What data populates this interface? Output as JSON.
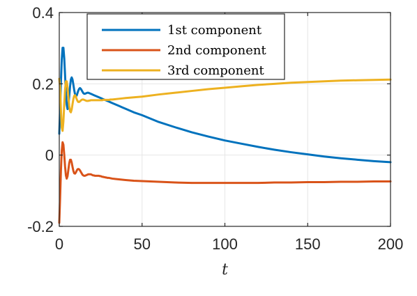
{
  "chart_data": {
    "type": "line",
    "title": "",
    "xlabel": "t",
    "ylabel": "",
    "xlim": [
      0,
      200
    ],
    "ylim": [
      -0.2,
      0.4
    ],
    "x_ticks": [
      0,
      50,
      100,
      150,
      200
    ],
    "x_tick_labels": [
      "0",
      "50",
      "100",
      "150",
      "200"
    ],
    "y_ticks": [
      -0.2,
      0,
      0.2,
      0.4
    ],
    "y_tick_labels": [
      "-0.2",
      "0",
      "0.2",
      "0.4"
    ],
    "grid": true,
    "legend_position": "top-right",
    "series": [
      {
        "name": "1st component",
        "color": "#0072BD",
        "x": [
          0,
          0.5,
          1.0,
          1.5,
          2.0,
          2.5,
          3.0,
          3.5,
          4.0,
          4.5,
          5.0,
          5.5,
          6.0,
          6.5,
          7.0,
          7.5,
          8.0,
          8.5,
          9.0,
          9.5,
          10.0,
          10.5,
          11.0,
          11.5,
          12.0,
          12.5,
          13.0,
          13.5,
          14.0,
          14.5,
          15.0,
          15.5,
          16.0,
          16.5,
          17.0,
          17.5,
          18.0,
          18.5,
          19.0,
          19.5,
          20.0,
          20.5,
          21.0,
          21.5,
          22.0,
          22.5,
          23.0,
          23.5,
          24.0,
          24.5,
          25.0,
          25.5,
          26.0,
          26.5,
          27.0,
          27.5,
          28.0,
          28.5,
          29.0,
          29.5,
          30.0,
          31.0,
          32.0,
          34.0,
          36.0,
          38.0,
          40.0,
          45.0,
          50.0,
          60.0,
          70.0,
          80.0,
          90.0,
          100.0,
          110.0,
          120.0,
          130.0,
          140.0,
          150.0,
          160.0,
          170.0,
          180.0,
          190.0,
          200.0
        ],
        "y": [
          0.06,
          0.129,
          0.206,
          0.267,
          0.301,
          0.301,
          0.272,
          0.224,
          0.175,
          0.141,
          0.129,
          0.139,
          0.164,
          0.192,
          0.212,
          0.218,
          0.212,
          0.198,
          0.183,
          0.171,
          0.166,
          0.167,
          0.174,
          0.181,
          0.186,
          0.188,
          0.186,
          0.182,
          0.178,
          0.174,
          0.172,
          0.172,
          0.173,
          0.174,
          0.175,
          0.175,
          0.174,
          0.173,
          0.172,
          0.171,
          0.17,
          0.169,
          0.168,
          0.167,
          0.166,
          0.165,
          0.164,
          0.163,
          0.162,
          0.161,
          0.16,
          0.159,
          0.158,
          0.157,
          0.156,
          0.155,
          0.154,
          0.153,
          0.152,
          0.151,
          0.15,
          0.148,
          0.146,
          0.142,
          0.138,
          0.134,
          0.13,
          0.12,
          0.112,
          0.093,
          0.078,
          0.064,
          0.052,
          0.041,
          0.032,
          0.023,
          0.015,
          0.008,
          0.002,
          -0.004,
          -0.009,
          -0.013,
          -0.017,
          -0.02
        ]
      },
      {
        "name": "2nd component",
        "color": "#D95319",
        "x": [
          0,
          0.5,
          1.0,
          1.5,
          2.0,
          2.5,
          3.0,
          3.5,
          4.0,
          4.5,
          5.0,
          5.5,
          6.0,
          6.5,
          7.0,
          7.5,
          8.0,
          8.5,
          9.0,
          9.5,
          10.0,
          10.5,
          11.0,
          11.5,
          12.0,
          12.5,
          13.0,
          13.5,
          14.0,
          14.5,
          15.0,
          15.5,
          16.0,
          16.5,
          17.0,
          17.5,
          18.0,
          18.5,
          19.0,
          19.5,
          20.0,
          20.5,
          21.0,
          21.5,
          22.0,
          22.5,
          23.0,
          23.5,
          24.0,
          24.5,
          25.0,
          25.5,
          26.0,
          26.5,
          27.0,
          27.5,
          28.0,
          28.5,
          29.0,
          29.5,
          30.0,
          31.0,
          32.0,
          34.0,
          36.0,
          38.0,
          40.0,
          45.0,
          50.0,
          60.0,
          70.0,
          80.0,
          90.0,
          100.0,
          110.0,
          120.0,
          130.0,
          140.0,
          150.0,
          160.0,
          170.0,
          180.0,
          190.0,
          200.0
        ],
        "y": [
          -0.19,
          -0.12,
          -0.043,
          0.012,
          0.036,
          0.029,
          0.001,
          -0.032,
          -0.057,
          -0.066,
          -0.059,
          -0.041,
          -0.023,
          -0.013,
          -0.013,
          -0.021,
          -0.033,
          -0.044,
          -0.051,
          -0.052,
          -0.049,
          -0.044,
          -0.04,
          -0.039,
          -0.04,
          -0.043,
          -0.047,
          -0.051,
          -0.055,
          -0.057,
          -0.058,
          -0.058,
          -0.057,
          -0.056,
          -0.055,
          -0.054,
          -0.054,
          -0.054,
          -0.054,
          -0.055,
          -0.056,
          -0.057,
          -0.057,
          -0.058,
          -0.058,
          -0.058,
          -0.058,
          -0.058,
          -0.058,
          -0.059,
          -0.059,
          -0.06,
          -0.061,
          -0.061,
          -0.062,
          -0.062,
          -0.063,
          -0.063,
          -0.064,
          -0.064,
          -0.064,
          -0.065,
          -0.066,
          -0.067,
          -0.068,
          -0.069,
          -0.07,
          -0.072,
          -0.073,
          -0.075,
          -0.077,
          -0.078,
          -0.078,
          -0.078,
          -0.078,
          -0.078,
          -0.077,
          -0.077,
          -0.076,
          -0.076,
          -0.075,
          -0.075,
          -0.074,
          -0.074
        ]
      },
      {
        "name": "3rd component",
        "color": "#EDB120",
        "x": [
          0,
          0.5,
          1.0,
          1.5,
          2.0,
          2.5,
          3.0,
          3.5,
          4.0,
          4.5,
          5.0,
          5.5,
          6.0,
          6.5,
          7.0,
          7.5,
          8.0,
          8.5,
          9.0,
          9.5,
          10.0,
          10.5,
          11.0,
          11.5,
          12.0,
          12.5,
          13.0,
          13.5,
          14.0,
          14.5,
          15.0,
          15.5,
          16.0,
          16.5,
          17.0,
          17.5,
          18.0,
          18.5,
          19.0,
          19.5,
          20.0,
          20.5,
          21.0,
          21.5,
          22.0,
          22.5,
          23.0,
          23.5,
          24.0,
          24.5,
          25.0,
          25.5,
          26.0,
          26.5,
          27.0,
          27.5,
          28.0,
          28.5,
          29.0,
          29.5,
          30.0,
          31.0,
          32.0,
          34.0,
          36.0,
          38.0,
          40.0,
          45.0,
          50.0,
          60.0,
          70.0,
          80.0,
          90.0,
          100.0,
          110.0,
          120.0,
          130.0,
          140.0,
          150.0,
          160.0,
          170.0,
          180.0,
          190.0,
          200.0
        ],
        "y": [
          0.214,
          0.19,
          0.127,
          0.077,
          0.068,
          0.095,
          0.142,
          0.184,
          0.207,
          0.207,
          0.19,
          0.163,
          0.138,
          0.123,
          0.12,
          0.128,
          0.143,
          0.157,
          0.166,
          0.168,
          0.164,
          0.157,
          0.152,
          0.149,
          0.149,
          0.151,
          0.153,
          0.155,
          0.156,
          0.156,
          0.155,
          0.154,
          0.153,
          0.152,
          0.152,
          0.152,
          0.153,
          0.153,
          0.154,
          0.154,
          0.154,
          0.154,
          0.154,
          0.154,
          0.154,
          0.154,
          0.154,
          0.154,
          0.154,
          0.154,
          0.154,
          0.154,
          0.154,
          0.155,
          0.155,
          0.155,
          0.155,
          0.155,
          0.155,
          0.155,
          0.155,
          0.156,
          0.156,
          0.157,
          0.158,
          0.159,
          0.16,
          0.162,
          0.164,
          0.17,
          0.175,
          0.18,
          0.185,
          0.189,
          0.193,
          0.197,
          0.2,
          0.203,
          0.205,
          0.207,
          0.209,
          0.21,
          0.211,
          0.212
        ]
      }
    ]
  }
}
